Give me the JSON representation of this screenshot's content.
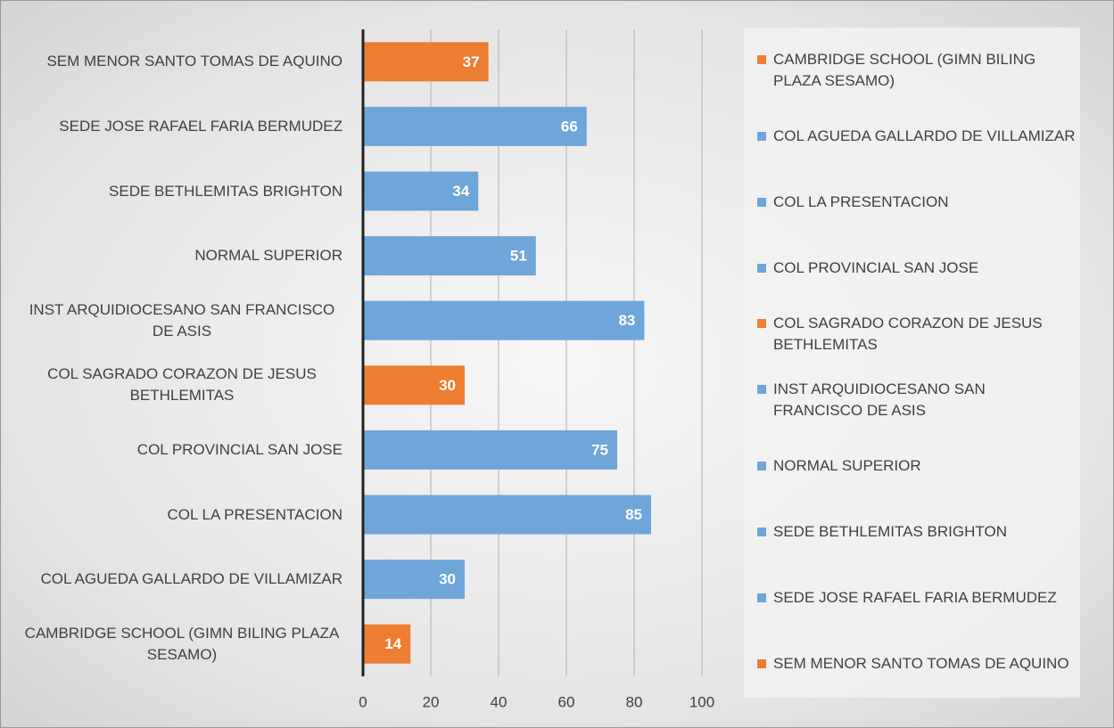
{
  "chart_data": {
    "type": "bar",
    "orientation": "horizontal",
    "categories": [
      "CAMBRIDGE SCHOOL (GIMN BILING PLAZA SESAMO)",
      "COL AGUEDA GALLARDO DE VILLAMIZAR",
      "COL LA PRESENTACION",
      "COL PROVINCIAL SAN JOSE",
      "COL SAGRADO CORAZON DE JESUS BETHLEMITAS",
      "INST ARQUIDIOCESANO SAN FRANCISCO DE ASIS",
      "NORMAL SUPERIOR",
      "SEDE BETHLEMITAS BRIGHTON",
      "SEDE JOSE RAFAEL FARIA BERMUDEZ",
      "SEM MENOR SANTO TOMAS DE AQUINO"
    ],
    "values": [
      14,
      30,
      85,
      75,
      30,
      83,
      51,
      34,
      66,
      37
    ],
    "colors": [
      "#ed7d31",
      "#6fa5d9",
      "#6fa5d9",
      "#6fa5d9",
      "#ed7d31",
      "#6fa5d9",
      "#6fa5d9",
      "#6fa5d9",
      "#6fa5d9",
      "#ed7d31"
    ],
    "xlim": [
      0,
      100
    ],
    "xticks": [
      0,
      20,
      40,
      60,
      80,
      100
    ],
    "grid": true,
    "legend": "right"
  }
}
